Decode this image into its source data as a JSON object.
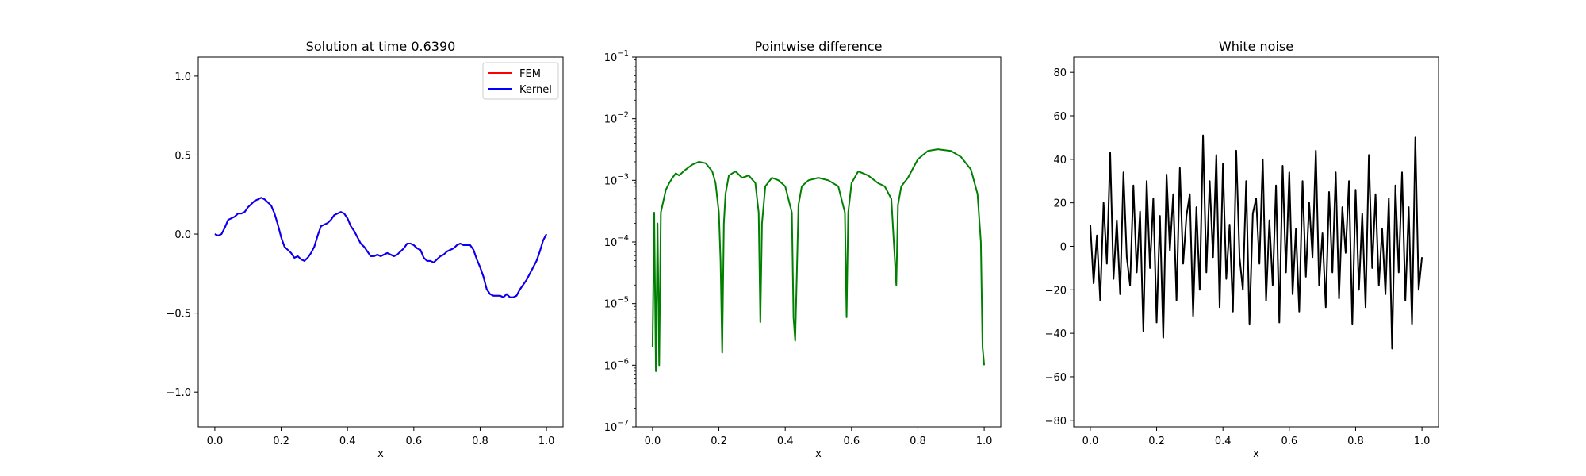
{
  "figure": {
    "background": "#ffffff"
  },
  "chart_data": [
    {
      "type": "line",
      "title": "Solution at time 0.6390",
      "xlabel": "x",
      "ylabel": "",
      "xlim": [
        -0.05,
        1.05
      ],
      "ylim": [
        -1.22,
        1.12
      ],
      "xticks": [
        0.0,
        0.2,
        0.4,
        0.6,
        0.8,
        1.0
      ],
      "xtick_labels": [
        "0.0",
        "0.2",
        "0.4",
        "0.6",
        "0.8",
        "1.0"
      ],
      "yticks": [
        -1.0,
        -0.5,
        0.0,
        0.5,
        1.0
      ],
      "ytick_labels": [
        "−1.0",
        "−0.5",
        "0.0",
        "0.5",
        "1.0"
      ],
      "grid": false,
      "legend": {
        "placement": "top-right",
        "entries": [
          "FEM",
          "Kernel"
        ]
      },
      "series": [
        {
          "name": "FEM",
          "color": "#ff0000",
          "x": [
            0.0,
            0.01,
            0.02,
            0.03,
            0.04,
            0.05,
            0.06,
            0.07,
            0.08,
            0.09,
            0.1,
            0.11,
            0.12,
            0.13,
            0.14,
            0.15,
            0.16,
            0.17,
            0.18,
            0.19,
            0.2,
            0.21,
            0.22,
            0.23,
            0.24,
            0.25,
            0.26,
            0.27,
            0.28,
            0.29,
            0.3,
            0.31,
            0.32,
            0.33,
            0.34,
            0.35,
            0.36,
            0.37,
            0.38,
            0.39,
            0.4,
            0.41,
            0.42,
            0.43,
            0.44,
            0.45,
            0.46,
            0.47,
            0.48,
            0.49,
            0.5,
            0.51,
            0.52,
            0.53,
            0.54,
            0.55,
            0.56,
            0.57,
            0.58,
            0.59,
            0.6,
            0.61,
            0.62,
            0.63,
            0.64,
            0.65,
            0.66,
            0.67,
            0.68,
            0.69,
            0.7,
            0.71,
            0.72,
            0.73,
            0.74,
            0.75,
            0.76,
            0.77,
            0.78,
            0.79,
            0.8,
            0.81,
            0.82,
            0.83,
            0.84,
            0.85,
            0.86,
            0.87,
            0.88,
            0.89,
            0.9,
            0.91,
            0.92,
            0.93,
            0.94,
            0.95,
            0.96,
            0.97,
            0.98,
            0.99,
            1.0
          ],
          "y": [
            0.0,
            -0.01,
            0.0,
            0.04,
            0.09,
            0.1,
            0.11,
            0.13,
            0.13,
            0.14,
            0.17,
            0.19,
            0.21,
            0.22,
            0.23,
            0.22,
            0.2,
            0.18,
            0.13,
            0.06,
            -0.02,
            -0.08,
            -0.1,
            -0.12,
            -0.15,
            -0.14,
            -0.16,
            -0.17,
            -0.15,
            -0.12,
            -0.08,
            -0.01,
            0.05,
            0.06,
            0.07,
            0.09,
            0.12,
            0.13,
            0.14,
            0.13,
            0.1,
            0.05,
            0.02,
            -0.02,
            -0.06,
            -0.08,
            -0.11,
            -0.14,
            -0.14,
            -0.13,
            -0.14,
            -0.13,
            -0.12,
            -0.13,
            -0.14,
            -0.13,
            -0.11,
            -0.09,
            -0.06,
            -0.06,
            -0.07,
            -0.09,
            -0.1,
            -0.15,
            -0.17,
            -0.17,
            -0.18,
            -0.16,
            -0.14,
            -0.13,
            -0.11,
            -0.1,
            -0.09,
            -0.07,
            -0.06,
            -0.07,
            -0.07,
            -0.07,
            -0.1,
            -0.16,
            -0.21,
            -0.27,
            -0.35,
            -0.38,
            -0.39,
            -0.39,
            -0.39,
            -0.4,
            -0.38,
            -0.4,
            -0.4,
            -0.39,
            -0.35,
            -0.32,
            -0.29,
            -0.25,
            -0.21,
            -0.17,
            -0.11,
            -0.04,
            0.0
          ]
        },
        {
          "name": "Kernel",
          "color": "#0000ff",
          "x": [
            0.0,
            0.01,
            0.02,
            0.03,
            0.04,
            0.05,
            0.06,
            0.07,
            0.08,
            0.09,
            0.1,
            0.11,
            0.12,
            0.13,
            0.14,
            0.15,
            0.16,
            0.17,
            0.18,
            0.19,
            0.2,
            0.21,
            0.22,
            0.23,
            0.24,
            0.25,
            0.26,
            0.27,
            0.28,
            0.29,
            0.3,
            0.31,
            0.32,
            0.33,
            0.34,
            0.35,
            0.36,
            0.37,
            0.38,
            0.39,
            0.4,
            0.41,
            0.42,
            0.43,
            0.44,
            0.45,
            0.46,
            0.47,
            0.48,
            0.49,
            0.5,
            0.51,
            0.52,
            0.53,
            0.54,
            0.55,
            0.56,
            0.57,
            0.58,
            0.59,
            0.6,
            0.61,
            0.62,
            0.63,
            0.64,
            0.65,
            0.66,
            0.67,
            0.68,
            0.69,
            0.7,
            0.71,
            0.72,
            0.73,
            0.74,
            0.75,
            0.76,
            0.77,
            0.78,
            0.79,
            0.8,
            0.81,
            0.82,
            0.83,
            0.84,
            0.85,
            0.86,
            0.87,
            0.88,
            0.89,
            0.9,
            0.91,
            0.92,
            0.93,
            0.94,
            0.95,
            0.96,
            0.97,
            0.98,
            0.99,
            1.0
          ],
          "y": [
            0.0,
            -0.01,
            0.0,
            0.04,
            0.09,
            0.1,
            0.11,
            0.13,
            0.13,
            0.14,
            0.17,
            0.19,
            0.21,
            0.22,
            0.23,
            0.22,
            0.2,
            0.18,
            0.13,
            0.06,
            -0.02,
            -0.08,
            -0.1,
            -0.12,
            -0.15,
            -0.14,
            -0.16,
            -0.17,
            -0.15,
            -0.12,
            -0.08,
            -0.01,
            0.05,
            0.06,
            0.07,
            0.09,
            0.12,
            0.13,
            0.14,
            0.13,
            0.1,
            0.05,
            0.02,
            -0.02,
            -0.06,
            -0.08,
            -0.11,
            -0.14,
            -0.14,
            -0.13,
            -0.14,
            -0.13,
            -0.12,
            -0.13,
            -0.14,
            -0.13,
            -0.11,
            -0.09,
            -0.06,
            -0.06,
            -0.07,
            -0.09,
            -0.1,
            -0.15,
            -0.17,
            -0.17,
            -0.18,
            -0.16,
            -0.14,
            -0.13,
            -0.11,
            -0.1,
            -0.09,
            -0.07,
            -0.06,
            -0.07,
            -0.07,
            -0.07,
            -0.1,
            -0.16,
            -0.21,
            -0.27,
            -0.35,
            -0.38,
            -0.39,
            -0.39,
            -0.39,
            -0.4,
            -0.38,
            -0.4,
            -0.4,
            -0.39,
            -0.35,
            -0.32,
            -0.29,
            -0.25,
            -0.21,
            -0.17,
            -0.11,
            -0.04,
            0.0
          ]
        }
      ]
    },
    {
      "type": "line",
      "title": "Pointwise difference",
      "xlabel": "x",
      "ylabel": "",
      "yscale": "log",
      "xlim": [
        -0.05,
        1.05
      ],
      "ylim": [
        1e-07,
        0.1
      ],
      "xticks": [
        0.0,
        0.2,
        0.4,
        0.6,
        0.8,
        1.0
      ],
      "xtick_labels": [
        "0.0",
        "0.2",
        "0.4",
        "0.6",
        "0.8",
        "1.0"
      ],
      "yticks": [
        1e-07,
        1e-06,
        1e-05,
        0.0001,
        0.001,
        0.01,
        0.1
      ],
      "ytick_mantissa": [
        "10",
        "10",
        "10",
        "10",
        "10",
        "10",
        "10"
      ],
      "ytick_exponents": [
        "−7",
        "−6",
        "−5",
        "−4",
        "−3",
        "−2",
        "−1"
      ],
      "grid": false,
      "series": [
        {
          "color": "#008000",
          "x": [
            0.0,
            0.005,
            0.01,
            0.015,
            0.02,
            0.025,
            0.03,
            0.04,
            0.05,
            0.06,
            0.07,
            0.08,
            0.1,
            0.12,
            0.14,
            0.16,
            0.18,
            0.19,
            0.2,
            0.205,
            0.21,
            0.215,
            0.22,
            0.23,
            0.25,
            0.27,
            0.29,
            0.31,
            0.32,
            0.325,
            0.33,
            0.34,
            0.36,
            0.38,
            0.4,
            0.42,
            0.425,
            0.43,
            0.435,
            0.44,
            0.45,
            0.47,
            0.5,
            0.53,
            0.56,
            0.58,
            0.585,
            0.59,
            0.6,
            0.62,
            0.65,
            0.68,
            0.7,
            0.72,
            0.735,
            0.74,
            0.75,
            0.77,
            0.8,
            0.83,
            0.86,
            0.9,
            0.93,
            0.96,
            0.98,
            0.99,
            0.995,
            1.0
          ],
          "y": [
            2e-06,
            0.0003,
            8e-07,
            0.0002,
            1e-06,
            0.0003,
            0.0004,
            0.0007,
            0.0009,
            0.0011,
            0.0013,
            0.0012,
            0.0015,
            0.0018,
            0.002,
            0.0019,
            0.0014,
            0.0009,
            0.0003,
            5e-05,
            1.6e-06,
            0.0002,
            0.0006,
            0.0012,
            0.0014,
            0.0011,
            0.0012,
            0.0009,
            0.0003,
            5e-06,
            0.0002,
            0.0008,
            0.0011,
            0.001,
            0.0008,
            0.0003,
            6e-06,
            2.5e-06,
            3e-05,
            0.0004,
            0.0008,
            0.001,
            0.0011,
            0.001,
            0.0008,
            0.0003,
            6e-06,
            0.0003,
            0.0009,
            0.0014,
            0.0012,
            0.0009,
            0.0008,
            0.0005,
            2e-05,
            0.0004,
            0.0008,
            0.0011,
            0.0022,
            0.003,
            0.0032,
            0.003,
            0.0024,
            0.0015,
            0.0006,
            0.0001,
            2e-06,
            1e-06
          ]
        }
      ]
    },
    {
      "type": "line",
      "title": "White noise",
      "xlabel": "x",
      "ylabel": "",
      "xlim": [
        -0.05,
        1.05
      ],
      "ylim": [
        -83,
        87
      ],
      "xticks": [
        0.0,
        0.2,
        0.4,
        0.6,
        0.8,
        1.0
      ],
      "xtick_labels": [
        "0.0",
        "0.2",
        "0.4",
        "0.6",
        "0.8",
        "1.0"
      ],
      "yticks": [
        -80,
        -60,
        -40,
        -20,
        0,
        20,
        40,
        60,
        80
      ],
      "ytick_labels": [
        "−80",
        "−60",
        "−40",
        "−20",
        "0",
        "20",
        "40",
        "60",
        "80"
      ],
      "grid": false,
      "series": [
        {
          "color": "#000000",
          "x": [
            0.0,
            0.01,
            0.02,
            0.03,
            0.04,
            0.05,
            0.06,
            0.07,
            0.08,
            0.09,
            0.1,
            0.11,
            0.12,
            0.13,
            0.14,
            0.15,
            0.16,
            0.17,
            0.18,
            0.19,
            0.2,
            0.21,
            0.22,
            0.23,
            0.24,
            0.25,
            0.26,
            0.27,
            0.28,
            0.29,
            0.3,
            0.31,
            0.32,
            0.33,
            0.34,
            0.35,
            0.36,
            0.37,
            0.38,
            0.39,
            0.4,
            0.41,
            0.42,
            0.43,
            0.44,
            0.45,
            0.46,
            0.47,
            0.48,
            0.49,
            0.5,
            0.51,
            0.52,
            0.53,
            0.54,
            0.55,
            0.56,
            0.57,
            0.58,
            0.59,
            0.6,
            0.61,
            0.62,
            0.63,
            0.64,
            0.65,
            0.66,
            0.67,
            0.68,
            0.69,
            0.7,
            0.71,
            0.72,
            0.73,
            0.74,
            0.75,
            0.76,
            0.77,
            0.78,
            0.79,
            0.8,
            0.81,
            0.82,
            0.83,
            0.84,
            0.85,
            0.86,
            0.87,
            0.88,
            0.89,
            0.9,
            0.91,
            0.92,
            0.93,
            0.94,
            0.95,
            0.96,
            0.97,
            0.98,
            0.99,
            1.0
          ],
          "y": [
            10,
            -17,
            5,
            -25,
            20,
            -8,
            43,
            -15,
            12,
            -22,
            34,
            -5,
            -18,
            28,
            -12,
            16,
            -39,
            30,
            -10,
            22,
            -35,
            14,
            -42,
            33,
            -2,
            24,
            -25,
            36,
            -8,
            14,
            24,
            -32,
            18,
            -20,
            51,
            -12,
            30,
            -5,
            42,
            -28,
            38,
            -15,
            10,
            -30,
            44,
            -5,
            -20,
            30,
            -36,
            15,
            22,
            -8,
            40,
            -25,
            12,
            -18,
            28,
            -35,
            37,
            -12,
            34,
            -22,
            8,
            -30,
            30,
            -14,
            20,
            -5,
            44,
            -18,
            6,
            -28,
            25,
            -12,
            34,
            -24,
            18,
            -3,
            30,
            -36,
            26,
            -20,
            15,
            -28,
            42,
            -10,
            24,
            -18,
            8,
            -22,
            22,
            -47,
            28,
            -12,
            34,
            -25,
            18,
            -36,
            50,
            -20,
            -5
          ]
        }
      ]
    }
  ]
}
